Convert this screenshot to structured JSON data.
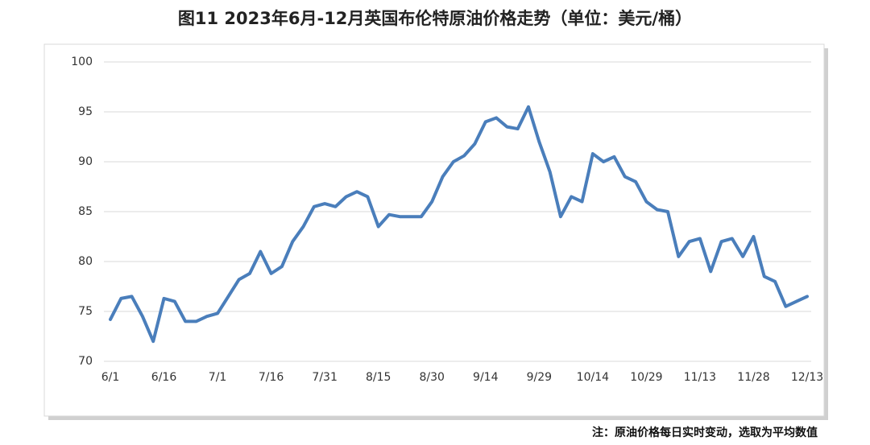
{
  "chart_data": {
    "type": "line",
    "title": "图11 2023年6月-12月英国布伦特原油价格走势（单位：美元/桶）",
    "note": "注：原油价格每日实时变动，选取为平均数值",
    "categories": [
      "6/1",
      null,
      null,
      null,
      null,
      "6/16",
      null,
      null,
      null,
      null,
      "7/1",
      null,
      null,
      null,
      null,
      "7/16",
      null,
      null,
      null,
      null,
      "7/31",
      null,
      null,
      null,
      null,
      "8/15",
      null,
      null,
      null,
      null,
      "8/30",
      null,
      null,
      null,
      null,
      "9/14",
      null,
      null,
      null,
      null,
      "9/29",
      null,
      null,
      null,
      null,
      "10/14",
      null,
      null,
      null,
      null,
      "10/29",
      null,
      null,
      null,
      null,
      "11/13",
      null,
      null,
      null,
      null,
      "11/28",
      null,
      null,
      null,
      null,
      "12/13"
    ],
    "series": [
      {
        "name": "布伦特原油",
        "color": "#4a7ebb",
        "values": [
          74.2,
          76.3,
          76.5,
          74.5,
          72,
          76.3,
          76,
          74,
          74,
          74.5,
          74.8,
          76.5,
          78.2,
          78.8,
          81,
          78.8,
          79.5,
          82,
          83.5,
          85.5,
          85.8,
          85.5,
          86.5,
          87,
          86.5,
          83.5,
          84.7,
          84.5,
          84.5,
          84.5,
          86,
          88.5,
          90,
          90.6,
          91.8,
          94,
          94.4,
          93.5,
          93.3,
          95.5,
          92,
          89,
          84.5,
          86.5,
          86,
          90.8,
          90,
          90.5,
          88.5,
          88,
          86,
          85.2,
          85,
          80.5,
          82,
          82.3,
          79,
          82,
          82.3,
          80.5,
          82.5,
          78.5,
          78,
          75.5,
          76,
          76.5
        ]
      }
    ],
    "ylim": [
      70,
      100
    ],
    "yticks": [
      70,
      75,
      80,
      85,
      90,
      95,
      100
    ],
    "grid": true
  }
}
